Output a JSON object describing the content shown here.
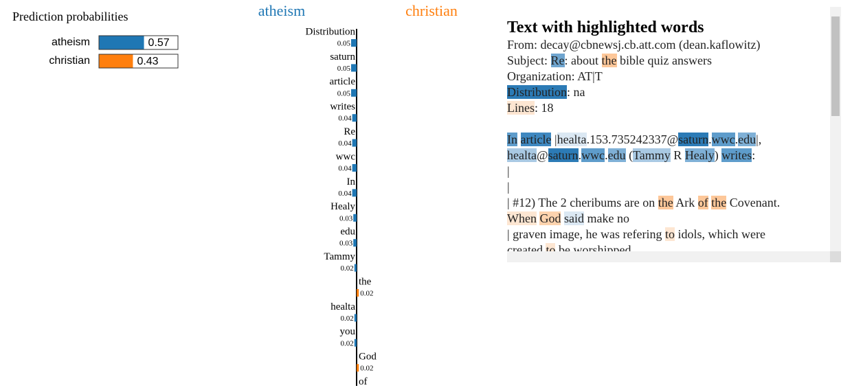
{
  "prediction": {
    "title": "Prediction probabilities",
    "classes": [
      {
        "name": "atheism",
        "value": 0.57,
        "color": "#1f77b4"
      },
      {
        "name": "christian",
        "value": 0.43,
        "color": "#ff7f0e"
      }
    ]
  },
  "explanation": {
    "left_label": "atheism",
    "right_label": "christian",
    "features": [
      {
        "word": "Distribution",
        "value": 0.05,
        "side": "left"
      },
      {
        "word": "saturn",
        "value": 0.05,
        "side": "left"
      },
      {
        "word": "article",
        "value": 0.05,
        "side": "left"
      },
      {
        "word": "writes",
        "value": 0.04,
        "side": "left"
      },
      {
        "word": "Re",
        "value": 0.04,
        "side": "left"
      },
      {
        "word": "wwc",
        "value": 0.04,
        "side": "left"
      },
      {
        "word": "In",
        "value": 0.04,
        "side": "left"
      },
      {
        "word": "Healy",
        "value": 0.03,
        "side": "left"
      },
      {
        "word": "edu",
        "value": 0.03,
        "side": "left"
      },
      {
        "word": "Tammy",
        "value": 0.02,
        "side": "left"
      },
      {
        "word": "the",
        "value": 0.02,
        "side": "right"
      },
      {
        "word": "healta",
        "value": 0.02,
        "side": "left"
      },
      {
        "word": "you",
        "value": 0.02,
        "side": "left"
      },
      {
        "word": "God",
        "value": 0.02,
        "side": "right"
      },
      {
        "word": "of",
        "value": null,
        "side": "right"
      }
    ]
  },
  "text_panel": {
    "title": "Text with highlighted words",
    "lines": [
      [
        {
          "text": "From: decay@cbnewsj.cb.att.com (dean.kaflowitz)"
        }
      ],
      [
        {
          "text": "Subject: "
        },
        {
          "text": "Re",
          "bg": "#6fa5cf"
        },
        {
          "text": ": about "
        },
        {
          "text": "the",
          "bg": "#fdc799"
        },
        {
          "text": " bible quiz answers"
        }
      ],
      [
        {
          "text": "Organization: AT|T"
        }
      ],
      [
        {
          "text": "Distribution",
          "bg": "#2c7bb6"
        },
        {
          "text": ": na"
        }
      ],
      [
        {
          "text": "Lines",
          "bg": "#fde6d2"
        },
        {
          "text": ": 18"
        }
      ],
      [],
      [
        {
          "text": "In",
          "bg": "#5e9ccb"
        },
        {
          "text": " "
        },
        {
          "text": "article",
          "bg": "#3f88c0"
        },
        {
          "text": " |"
        },
        {
          "text": "healta",
          "bg": "#dbe8f3"
        },
        {
          "text": ".153.735242337@"
        },
        {
          "text": "saturn",
          "bg": "#2c7bb6"
        },
        {
          "text": "."
        },
        {
          "text": "wwc",
          "bg": "#5e9ccb"
        },
        {
          "text": "."
        },
        {
          "text": "edu",
          "bg": "#7fb0d6"
        },
        {
          "text": "|,"
        }
      ],
      [
        {
          "text": "healta",
          "bg": "#a9c9e3"
        },
        {
          "text": "@"
        },
        {
          "text": "saturn",
          "bg": "#2c7bb6"
        },
        {
          "text": "."
        },
        {
          "text": "wwc",
          "bg": "#5e9ccb"
        },
        {
          "text": "."
        },
        {
          "text": "edu",
          "bg": "#7fb0d6"
        },
        {
          "text": " ("
        },
        {
          "text": "Tammy",
          "bg": "#a9c9e3"
        },
        {
          "text": " R "
        },
        {
          "text": "Healy",
          "bg": "#7fb0d6"
        },
        {
          "text": ") "
        },
        {
          "text": "writes",
          "bg": "#5e9ccb"
        },
        {
          "text": ":"
        }
      ],
      [
        {
          "text": "|"
        }
      ],
      [
        {
          "text": "|"
        }
      ],
      [
        {
          "text": "| #12) The 2 cheribums are on "
        },
        {
          "text": "the",
          "bg": "#fdc799"
        },
        {
          "text": " Ark "
        },
        {
          "text": "of",
          "bg": "#fdc799"
        },
        {
          "text": " "
        },
        {
          "text": "the",
          "bg": "#fdc799"
        },
        {
          "text": " Covenant."
        }
      ],
      [
        {
          "text": "When",
          "bg": "#fde6d2"
        },
        {
          "text": " "
        },
        {
          "text": "God",
          "bg": "#fdd3ae"
        },
        {
          "text": " "
        },
        {
          "text": "said",
          "bg": "#dbe8f3"
        },
        {
          "text": " make no"
        }
      ],
      [
        {
          "text": "| graven image, he was refering "
        },
        {
          "text": "to",
          "bg": "#fde6d2"
        },
        {
          "text": " idols, which were"
        }
      ],
      [
        {
          "text": "created "
        },
        {
          "text": "to",
          "bg": "#fde6d2"
        },
        {
          "text": " be worshipped"
        }
      ]
    ]
  }
}
